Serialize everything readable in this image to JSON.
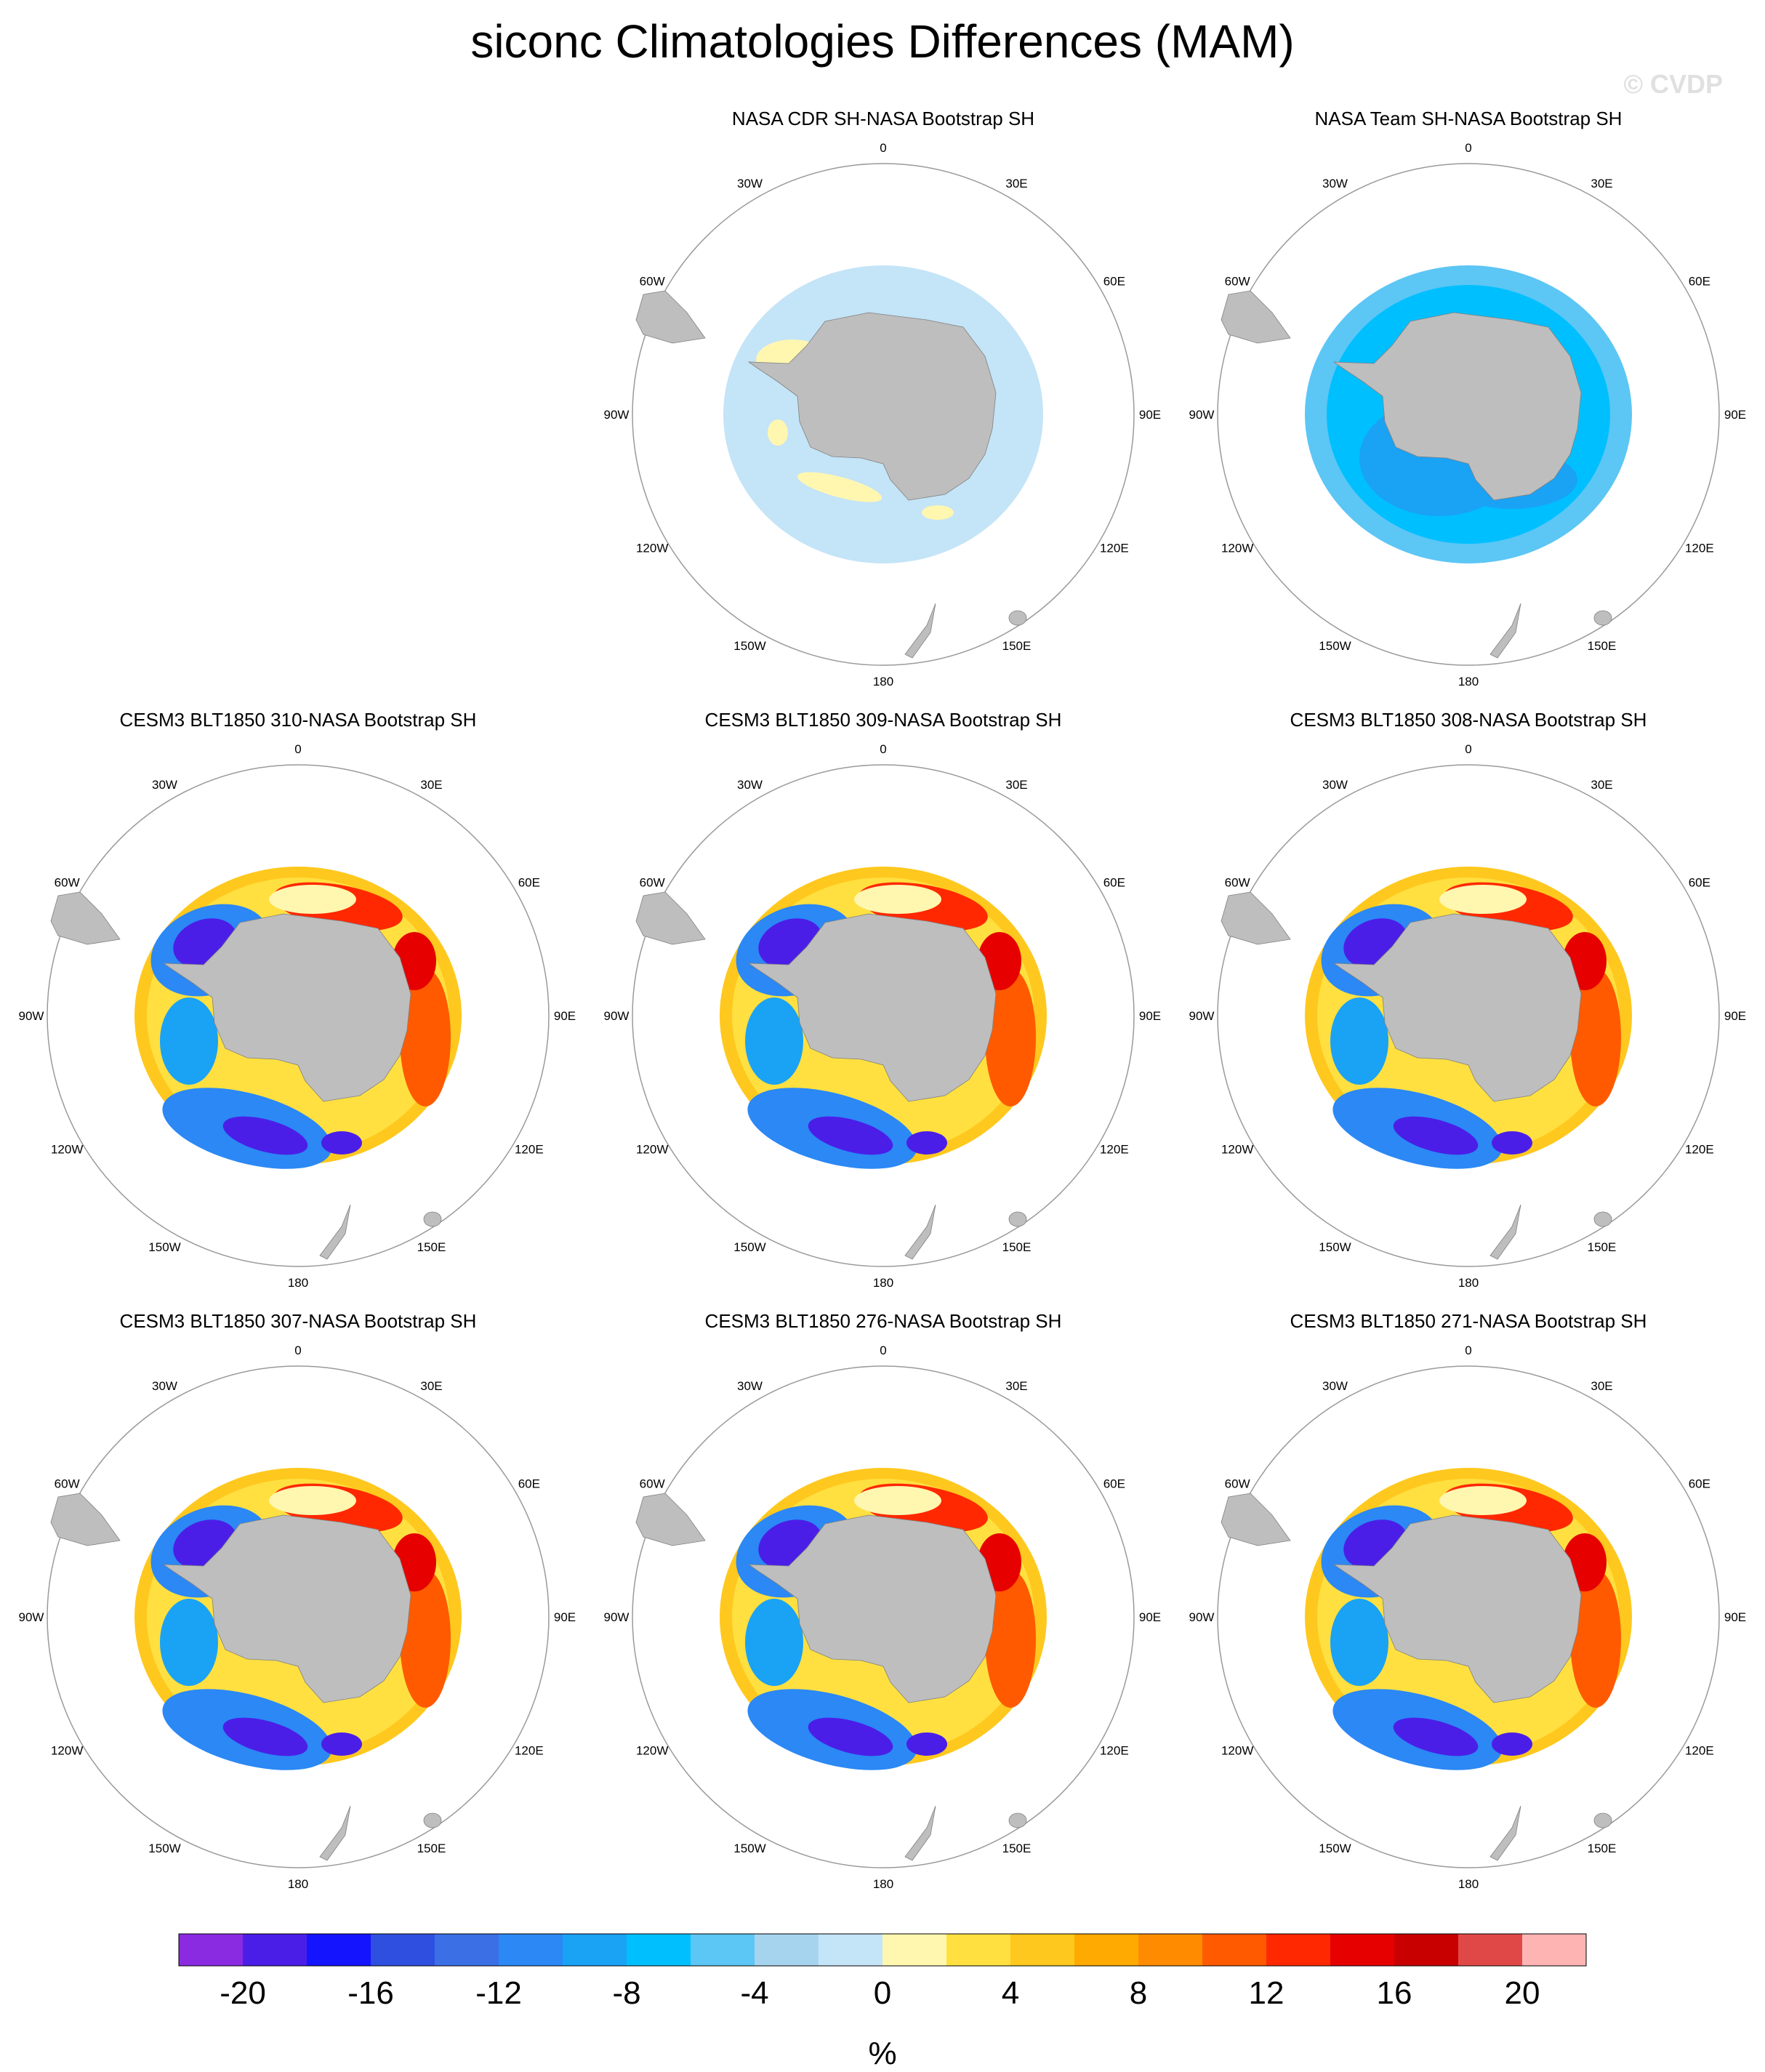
{
  "title": "siconc Climatologies Differences (MAM)",
  "watermark": "© CVDP",
  "lon_labels": [
    "0",
    "30E",
    "60E",
    "90E",
    "120E",
    "150E",
    "180",
    "150W",
    "120W",
    "90W",
    "60W",
    "30W"
  ],
  "panels": [
    {
      "title": "NASA CDR SH-NASA Bootstrap SH",
      "pattern": "cdr"
    },
    {
      "title": "NASA Team SH-NASA Bootstrap SH",
      "pattern": "team"
    },
    {
      "title": "CESM3 BLT1850 310-NASA Bootstrap SH",
      "pattern": "model"
    },
    {
      "title": "CESM3 BLT1850 309-NASA Bootstrap SH",
      "pattern": "model"
    },
    {
      "title": "CESM3 BLT1850 308-NASA Bootstrap SH",
      "pattern": "model"
    },
    {
      "title": "CESM3 BLT1850 307-NASA Bootstrap SH",
      "pattern": "model"
    },
    {
      "title": "CESM3 BLT1850 276-NASA Bootstrap SH",
      "pattern": "model"
    },
    {
      "title": "CESM3 BLT1850 271-NASA Bootstrap SH",
      "pattern": "model"
    }
  ],
  "colorbar": {
    "colors": [
      "#8a2be2",
      "#4b1ee8",
      "#1414ff",
      "#2e4fe0",
      "#3a6fe6",
      "#2b88f5",
      "#1aa2f5",
      "#00bfff",
      "#5cc6f5",
      "#a6d4ef",
      "#c4e4f7",
      "#fff7b0",
      "#ffe040",
      "#ffc81e",
      "#ffaa00",
      "#ff8c00",
      "#ff5a00",
      "#ff2800",
      "#e60000",
      "#c80000",
      "#e04848",
      "#ffb4b4"
    ],
    "tick_labels": [
      "-20",
      "-16",
      "-12",
      "-8",
      "-4",
      "0",
      "4",
      "8",
      "12",
      "16",
      "20"
    ],
    "unit": "%"
  },
  "land_color": "#bebebe"
}
